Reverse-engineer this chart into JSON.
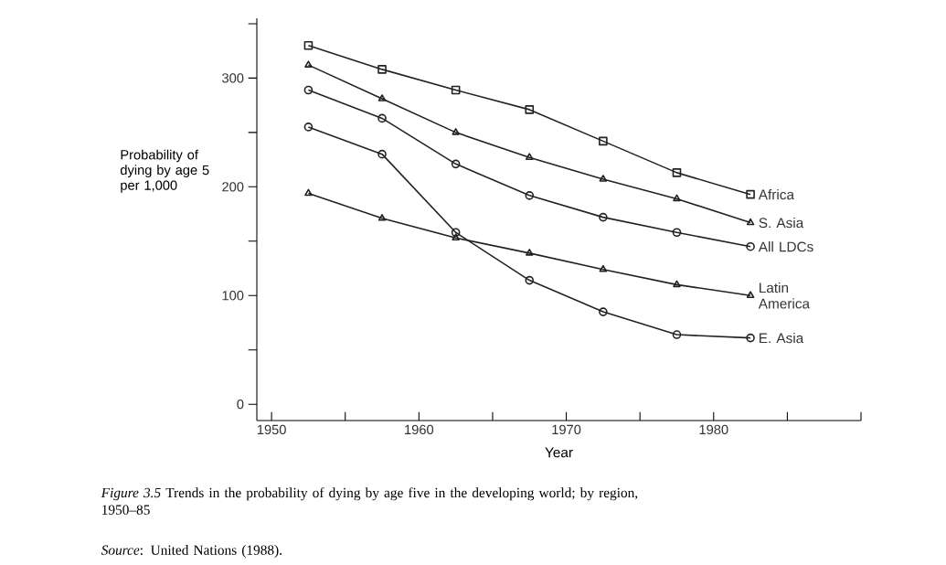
{
  "chart_data": {
    "type": "line",
    "xlabel": "Year",
    "ylabel": "Probability of dying by age 5 per 1,000",
    "x": [
      1952.5,
      1957.5,
      1962.5,
      1967.5,
      1972.5,
      1977.5,
      1982.5
    ],
    "xlim": [
      1949,
      1990
    ],
    "ylim": [
      -15,
      355
    ],
    "xticks": [
      1950,
      {
        "value": 1955,
        "label": null
      },
      1960,
      {
        "value": 1965,
        "label": null
      },
      1970,
      {
        "value": 1975,
        "label": null
      },
      1980,
      {
        "value": 1985,
        "label": null
      },
      {
        "value": 1990,
        "label": null
      }
    ],
    "yticks": [
      0,
      {
        "value": 50,
        "label": null
      },
      100,
      {
        "value": 150,
        "label": null
      },
      200,
      {
        "value": 250,
        "label": null
      },
      300,
      {
        "value": 350,
        "label": null
      }
    ],
    "series": [
      {
        "name": "Africa",
        "color": "#222222",
        "marker": "square",
        "values": [
          330,
          308,
          289,
          271,
          242,
          213,
          193
        ]
      },
      {
        "name": "S. Asia",
        "color": "#222222",
        "marker": "triangle",
        "values": [
          312,
          281,
          250,
          227,
          207,
          189,
          167
        ]
      },
      {
        "name": "All LDCs",
        "color": "#222222",
        "marker": "circle",
        "values": [
          289,
          263,
          221,
          192,
          172,
          158,
          145
        ]
      },
      {
        "name": "Latin America",
        "color": "#222222",
        "marker": "triangle",
        "values": [
          194,
          171,
          153,
          139,
          124,
          110,
          100
        ]
      },
      {
        "name": "E. Asia",
        "color": "#222222",
        "marker": "circle",
        "values": [
          255,
          230,
          158,
          114,
          85,
          64,
          61
        ]
      }
    ],
    "annotations": [
      "*Figure 3.5* Trends in the probability of dying by age five in the developing world; by region, 1950–85",
      "*Source*: United Nations (1988)."
    ]
  }
}
